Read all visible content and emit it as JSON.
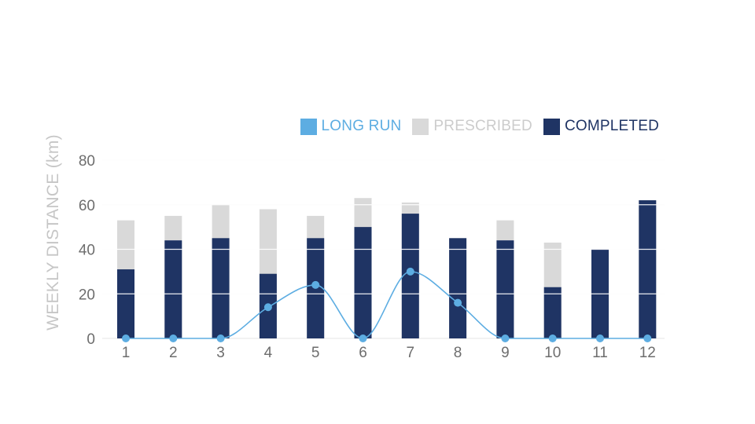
{
  "chart_data": {
    "type": "bar",
    "categories": [
      "1",
      "2",
      "3",
      "4",
      "5",
      "6",
      "7",
      "8",
      "9",
      "10",
      "11",
      "12"
    ],
    "ylabel": "WEEKLY DISTANCE (km)",
    "ylim": [
      0,
      80
    ],
    "yticks": [
      0,
      20,
      40,
      60,
      80
    ],
    "grid": true,
    "legend_position": "top-right",
    "series": [
      {
        "name": "LONG RUN",
        "type": "line",
        "color": "#5dade2",
        "values": [
          0,
          0,
          0,
          14,
          24,
          0,
          30,
          16,
          0,
          0,
          0,
          0
        ]
      },
      {
        "name": "PRESCRIBED",
        "type": "bar",
        "color": "#d9d9d9",
        "values": [
          53,
          55,
          60,
          58,
          55,
          63,
          61,
          45,
          53,
          43,
          40,
          62
        ]
      },
      {
        "name": "COMPLETED",
        "type": "bar",
        "color": "#1f3464",
        "values": [
          31,
          44,
          45,
          29,
          45,
          50,
          56,
          45,
          44,
          23,
          40,
          62
        ]
      }
    ]
  },
  "legend_text_colors": [
    "#5dade2",
    "#cccccc",
    "#1f3464"
  ]
}
